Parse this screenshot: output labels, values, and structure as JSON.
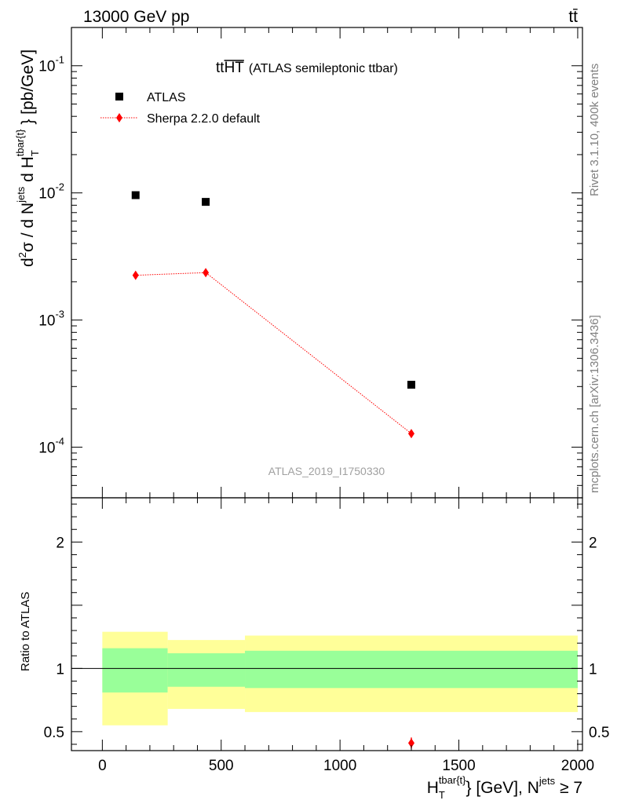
{
  "header": {
    "energy_label": "13000 GeV pp",
    "process_label": "tt̄"
  },
  "side_text": {
    "rivet": "Rivet 3.1.10,  400k events",
    "mcplots": "mcplots.cern.ch [arXiv:1306.3436]"
  },
  "colors": {
    "data": "#000000",
    "mc": "#ff0000",
    "band_inner": "#99ff99",
    "band_outer": "#ffff99",
    "watermark": "#a0a0a0",
    "side_text": "#808080"
  },
  "chart_data": [
    {
      "type": "scatter",
      "title_main": "tt",
      "title_overline": "HT",
      "title_sub": "(ATLAS semileptonic ttbar)",
      "watermark": "ATLAS_2019_I1750330",
      "ylabel": "d²σ / d N^jets d H_T^tbar{t} [pb/GeV]",
      "yscale": "log",
      "ylim": [
        4e-05,
        0.2
      ],
      "xlim": [
        -130,
        2020
      ],
      "y_ticks": [
        {
          "mant": "10",
          "exp": "-1",
          "v": 0.1
        },
        {
          "mant": "10",
          "exp": "-2",
          "v": 0.01
        },
        {
          "mant": "10",
          "exp": "-3",
          "v": 0.001
        },
        {
          "mant": "10",
          "exp": "-4",
          "v": 0.0001
        }
      ],
      "legend_position": "top-left",
      "series": [
        {
          "name": "ATLAS",
          "marker": "square",
          "x": [
            140,
            435,
            1300
          ],
          "y": [
            0.0096,
            0.0085,
            0.00031
          ]
        },
        {
          "name": "Sherpa 2.2.0 default",
          "marker": "diamond",
          "line": "dotted",
          "x": [
            140,
            435,
            1300
          ],
          "y": [
            0.00225,
            0.00236,
            0.000128
          ]
        }
      ]
    },
    {
      "type": "area",
      "ylabel": "Ratio to ATLAS",
      "xlabel": "H_T^tbar{t} [GeV], N^jets ≥ 7",
      "xlim": [
        -130,
        2020
      ],
      "ylim": [
        0.35,
        2.35
      ],
      "x_ticks": [
        0,
        500,
        1000,
        1500,
        2000
      ],
      "y_ticks": [
        0.5,
        1,
        2
      ],
      "reference_line": 1,
      "bins": [
        {
          "x0": 0,
          "x1": 275,
          "inner": [
            0.81,
            1.16
          ],
          "outer": [
            0.55,
            1.29
          ]
        },
        {
          "x0": 275,
          "x1": 600,
          "inner": [
            0.855,
            1.12
          ],
          "outer": [
            0.68,
            1.225
          ]
        },
        {
          "x0": 600,
          "x1": 2000,
          "inner": [
            0.845,
            1.14
          ],
          "outer": [
            0.655,
            1.26
          ]
        }
      ],
      "ratio_points": [
        {
          "x": 1300,
          "y": 0.41
        }
      ]
    }
  ]
}
